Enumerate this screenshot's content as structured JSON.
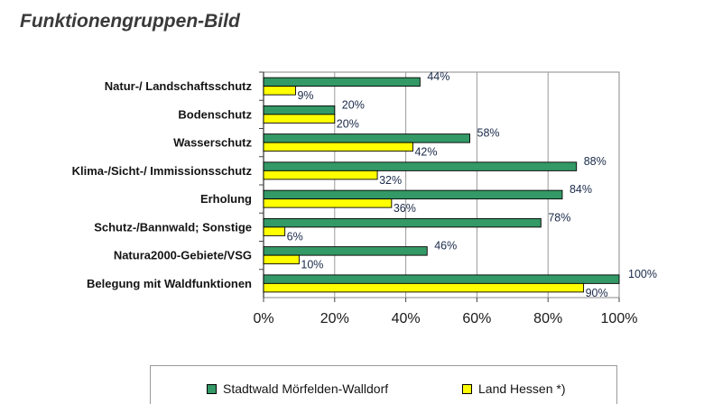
{
  "page": {
    "title": "Funktionengruppen-Bild"
  },
  "chart_data": {
    "type": "bar",
    "orientation": "horizontal",
    "categories": [
      "Natur-/ Landschaftsschutz",
      "Bodenschutz",
      "Wasserschutz",
      "Klima-/Sicht-/ Immissionsschutz",
      "Erholung",
      "Schutz-/Bannwald; Sonstige",
      "Natura2000-Gebiete/VSG",
      "Belegung mit Waldfunktionen"
    ],
    "series": [
      {
        "name": "Stadtwald Mörfelden-Walldorf",
        "color": "#339966",
        "values": [
          44,
          20,
          58,
          88,
          84,
          78,
          46,
          100
        ],
        "labels": [
          "44%",
          "20%",
          "58%",
          "88%",
          "84%",
          "78%",
          "46%",
          "100%"
        ]
      },
      {
        "name": "Land Hessen *)",
        "color": "#ffff00",
        "values": [
          9,
          20,
          42,
          32,
          36,
          6,
          10,
          90
        ],
        "labels": [
          "9%",
          "20%",
          "42%",
          "32%",
          "36%",
          "6%",
          "10%",
          "90%"
        ]
      }
    ],
    "xlim": [
      0,
      100
    ],
    "xticks": [
      "0%",
      "20%",
      "40%",
      "60%",
      "80%",
      "100%"
    ],
    "grid": true,
    "legend_position": "bottom"
  }
}
